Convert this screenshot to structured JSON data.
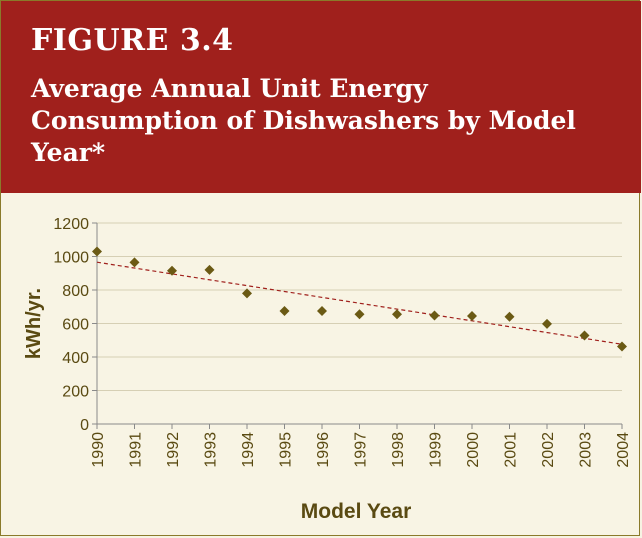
{
  "figure": {
    "label": "FIGURE 3.4",
    "title": "Average Annual Unit Energy Consumption of Dishwashers by Model Year*"
  },
  "colors": {
    "header_bg": "#a0201c",
    "plot_bg": "#f8f4e4",
    "marker": "#6b5a14",
    "trendline": "#a0201c",
    "axis_text": "#5a4a12"
  },
  "chart_data": {
    "type": "scatter",
    "xlabel": "Model Year",
    "ylabel": "kWh/yr.",
    "x": [
      "1990",
      "1991",
      "1992",
      "1993",
      "1994",
      "1995",
      "1996",
      "1997",
      "1998",
      "1999",
      "2000",
      "2001",
      "2002",
      "2003",
      "2004"
    ],
    "series": [
      {
        "values": [
          1030,
          965,
          915,
          920,
          780,
          675,
          675,
          655,
          655,
          648,
          645,
          640,
          598,
          528,
          463
        ]
      }
    ],
    "trendline": {
      "type": "linear",
      "start": 966,
      "end": 476
    },
    "ylim": [
      0,
      1200
    ],
    "yticks": [
      0,
      200,
      400,
      600,
      800,
      1000,
      1200
    ],
    "grid": true,
    "legend": "none"
  }
}
